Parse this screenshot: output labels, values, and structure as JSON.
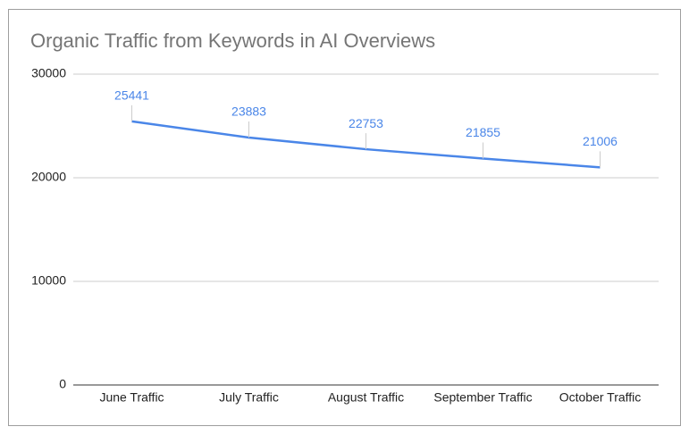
{
  "chart_data": {
    "type": "line",
    "title": "Organic Traffic from Keywords in AI Overviews",
    "categories": [
      "June Traffic",
      "July Traffic",
      "August Traffic",
      "September Traffic",
      "October Traffic"
    ],
    "values": [
      25441,
      23883,
      22753,
      21855,
      21006
    ],
    "color": "#4a86e8",
    "ylim": [
      0,
      30000
    ],
    "yticks": [
      0,
      10000,
      20000,
      30000
    ],
    "grid": true
  }
}
